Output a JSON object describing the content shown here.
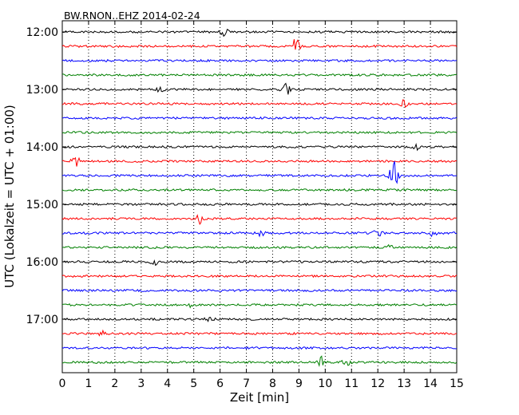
{
  "chart_data": {
    "type": "line",
    "title": "BW.RNON..EHZ 2014-02-24",
    "xlabel": "Zeit  [min]",
    "ylabel": "UTC (Lokalzeit = UTC + 01:00)",
    "xlim": [
      0,
      15
    ],
    "xticks": [
      "0",
      "1",
      "2",
      "3",
      "4",
      "5",
      "6",
      "7",
      "8",
      "9",
      "10",
      "11",
      "12",
      "13",
      "14",
      "15"
    ],
    "yticks": [
      "12:00",
      "13:00",
      "14:00",
      "15:00",
      "16:00",
      "17:00"
    ],
    "grid": "vertical dotted",
    "trace_colors": [
      "#000000",
      "#ff0000",
      "#0000ff",
      "#008000"
    ],
    "traces": [
      {
        "start": "12:00",
        "events": [
          {
            "x": 6.2,
            "amp": 1.4
          }
        ]
      },
      {
        "start": "12:15",
        "events": [
          {
            "x": 8.9,
            "amp": 1.6
          }
        ]
      },
      {
        "start": "12:30",
        "events": []
      },
      {
        "start": "12:45",
        "events": []
      },
      {
        "start": "13:00",
        "events": [
          {
            "x": 8.5,
            "amp": 1.5
          },
          {
            "x": 3.7,
            "amp": 0.6
          }
        ]
      },
      {
        "start": "13:15",
        "events": [
          {
            "x": 13.0,
            "amp": 0.6
          }
        ]
      },
      {
        "start": "13:30",
        "events": []
      },
      {
        "start": "13:45",
        "events": []
      },
      {
        "start": "14:00",
        "events": [
          {
            "x": 13.5,
            "amp": 0.6
          }
        ]
      },
      {
        "start": "14:15",
        "events": [
          {
            "x": 0.5,
            "amp": 1.0
          }
        ]
      },
      {
        "start": "14:30",
        "events": [
          {
            "x": 12.6,
            "amp": 3.0
          }
        ]
      },
      {
        "start": "14:45",
        "events": []
      },
      {
        "start": "15:00",
        "events": []
      },
      {
        "start": "15:15",
        "events": [
          {
            "x": 5.2,
            "amp": 0.9
          }
        ]
      },
      {
        "start": "15:30",
        "events": [
          {
            "x": 7.6,
            "amp": 0.9
          },
          {
            "x": 12.0,
            "amp": 0.6
          },
          {
            "x": 14.1,
            "amp": 0.5
          }
        ]
      },
      {
        "start": "15:45",
        "events": [
          {
            "x": 12.5,
            "amp": 0.5
          }
        ]
      },
      {
        "start": "16:00",
        "events": [
          {
            "x": 3.5,
            "amp": 0.5
          }
        ]
      },
      {
        "start": "16:15",
        "events": []
      },
      {
        "start": "16:30",
        "events": []
      },
      {
        "start": "16:45",
        "events": [
          {
            "x": 4.9,
            "amp": 0.8
          }
        ]
      },
      {
        "start": "17:00",
        "events": [
          {
            "x": 5.6,
            "amp": 0.5
          }
        ]
      },
      {
        "start": "17:15",
        "events": [
          {
            "x": 1.5,
            "amp": 0.9
          }
        ]
      },
      {
        "start": "17:30",
        "events": []
      },
      {
        "start": "17:45",
        "events": [
          {
            "x": 9.9,
            "amp": 1.0
          },
          {
            "x": 10.8,
            "amp": 0.6
          }
        ]
      }
    ]
  }
}
